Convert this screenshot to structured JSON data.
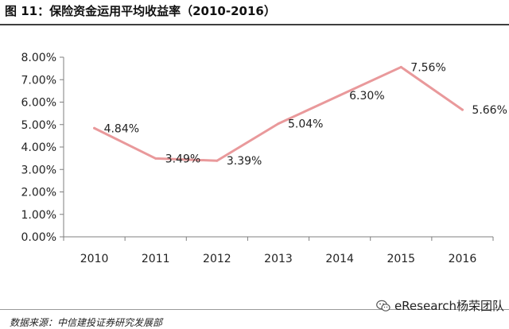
{
  "header": {
    "title": "图 11：保险资金运用平均收益率（2010-2016）"
  },
  "footer": {
    "source": "数据来源：中信建投证券研究发展部"
  },
  "watermark": {
    "text": "eResearch杨荣团队",
    "icon": "wechat-icon"
  },
  "colors": {
    "line": "#e9999b",
    "axis": "#7f7f7f",
    "text": "#222222"
  },
  "chart_data": {
    "type": "line",
    "title": "图 11：保险资金运用平均收益率（2010-2016）",
    "xlabel": "",
    "ylabel": "",
    "categories": [
      "2010",
      "2011",
      "2012",
      "2013",
      "2014",
      "2015",
      "2016"
    ],
    "series": [
      {
        "values": [
          4.84,
          3.49,
          3.39,
          5.04,
          6.3,
          7.56,
          5.66
        ],
        "labels": [
          "4.84%",
          "3.49%",
          "3.39%",
          "5.04%",
          "6.30%",
          "7.56%",
          "5.66%"
        ]
      }
    ],
    "ylim": [
      0,
      8
    ],
    "yticks": [
      "0.00%",
      "1.00%",
      "2.00%",
      "3.00%",
      "4.00%",
      "5.00%",
      "6.00%",
      "7.00%",
      "8.00%"
    ],
    "grid": false,
    "legend": "none"
  }
}
